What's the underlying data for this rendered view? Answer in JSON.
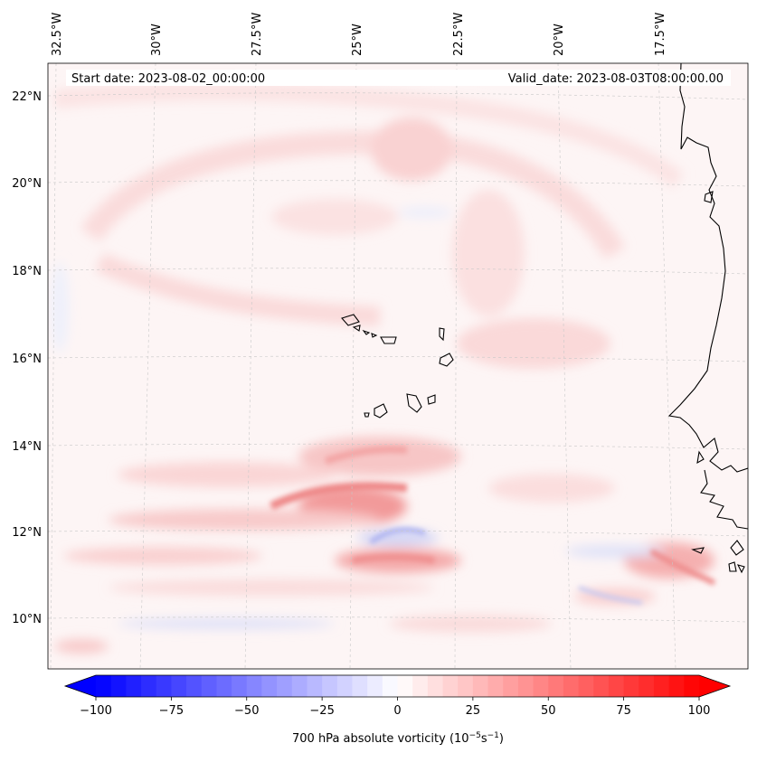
{
  "header": {
    "start_date": "Start date: 2023-08-02_00:00:00",
    "valid_date": "Valid_date: 2023-08-03T08:00:00.00"
  },
  "map": {
    "lon_labels": [
      "32.5°W",
      "30°W",
      "27.5°W",
      "25°W",
      "22.5°W",
      "20°W",
      "17.5°W"
    ],
    "lat_labels": [
      "22°N",
      "20°N",
      "18°N",
      "16°N",
      "14°N",
      "12°N",
      "10°N"
    ],
    "field": "700 hPa absolute vorticity",
    "features": [
      "cape-verde-islands",
      "west-africa-coastline"
    ]
  },
  "colorbar": {
    "ticks": [
      "−100",
      "−75",
      "−50",
      "−25",
      "0",
      "25",
      "50",
      "75",
      "100"
    ],
    "tick_values": [
      -100,
      -75,
      -50,
      -25,
      0,
      25,
      50,
      75,
      100
    ],
    "range": [
      -100,
      100
    ],
    "step": 5,
    "label": "700 hPa absolute vorticity (10",
    "label_exp1": "−5",
    "label_mid": "s",
    "label_exp2": "−1",
    "label_end": ")",
    "cmap": "bwr",
    "low_color": "#0000ff",
    "mid_color": "#ffffff",
    "high_color": "#ff0000"
  }
}
